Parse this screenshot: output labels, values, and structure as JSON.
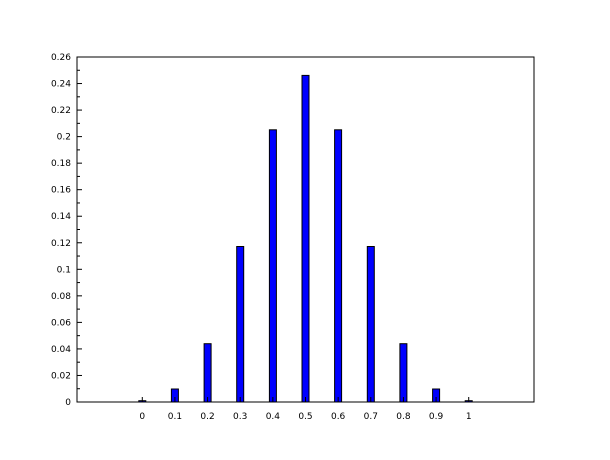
{
  "chart_data": {
    "type": "bar",
    "x": [
      0,
      0.1,
      0.2,
      0.3,
      0.4,
      0.5,
      0.6,
      0.7,
      0.8,
      0.9,
      1
    ],
    "values": [
      0.001,
      0.0098,
      0.0439,
      0.1172,
      0.2051,
      0.2461,
      0.2051,
      0.1172,
      0.0439,
      0.0098,
      0.001
    ],
    "x_tick_labels": [
      "0",
      "0.1",
      "0.2",
      "0.3",
      "0.4",
      "0.5",
      "0.6",
      "0.7",
      "0.8",
      "0.9",
      "1"
    ],
    "y_tick_labels": [
      "0",
      "0.02",
      "0.04",
      "0.06",
      "0.08",
      "0.1",
      "0.12",
      "0.14",
      "0.16",
      "0.18",
      "0.2",
      "0.22",
      "0.24",
      "0.26"
    ],
    "xlim": [
      -0.2,
      1.2
    ],
    "ylim": [
      0,
      0.26
    ],
    "grid": false,
    "bar_color": "#0000ff",
    "title": "",
    "xlabel": "",
    "ylabel": ""
  }
}
